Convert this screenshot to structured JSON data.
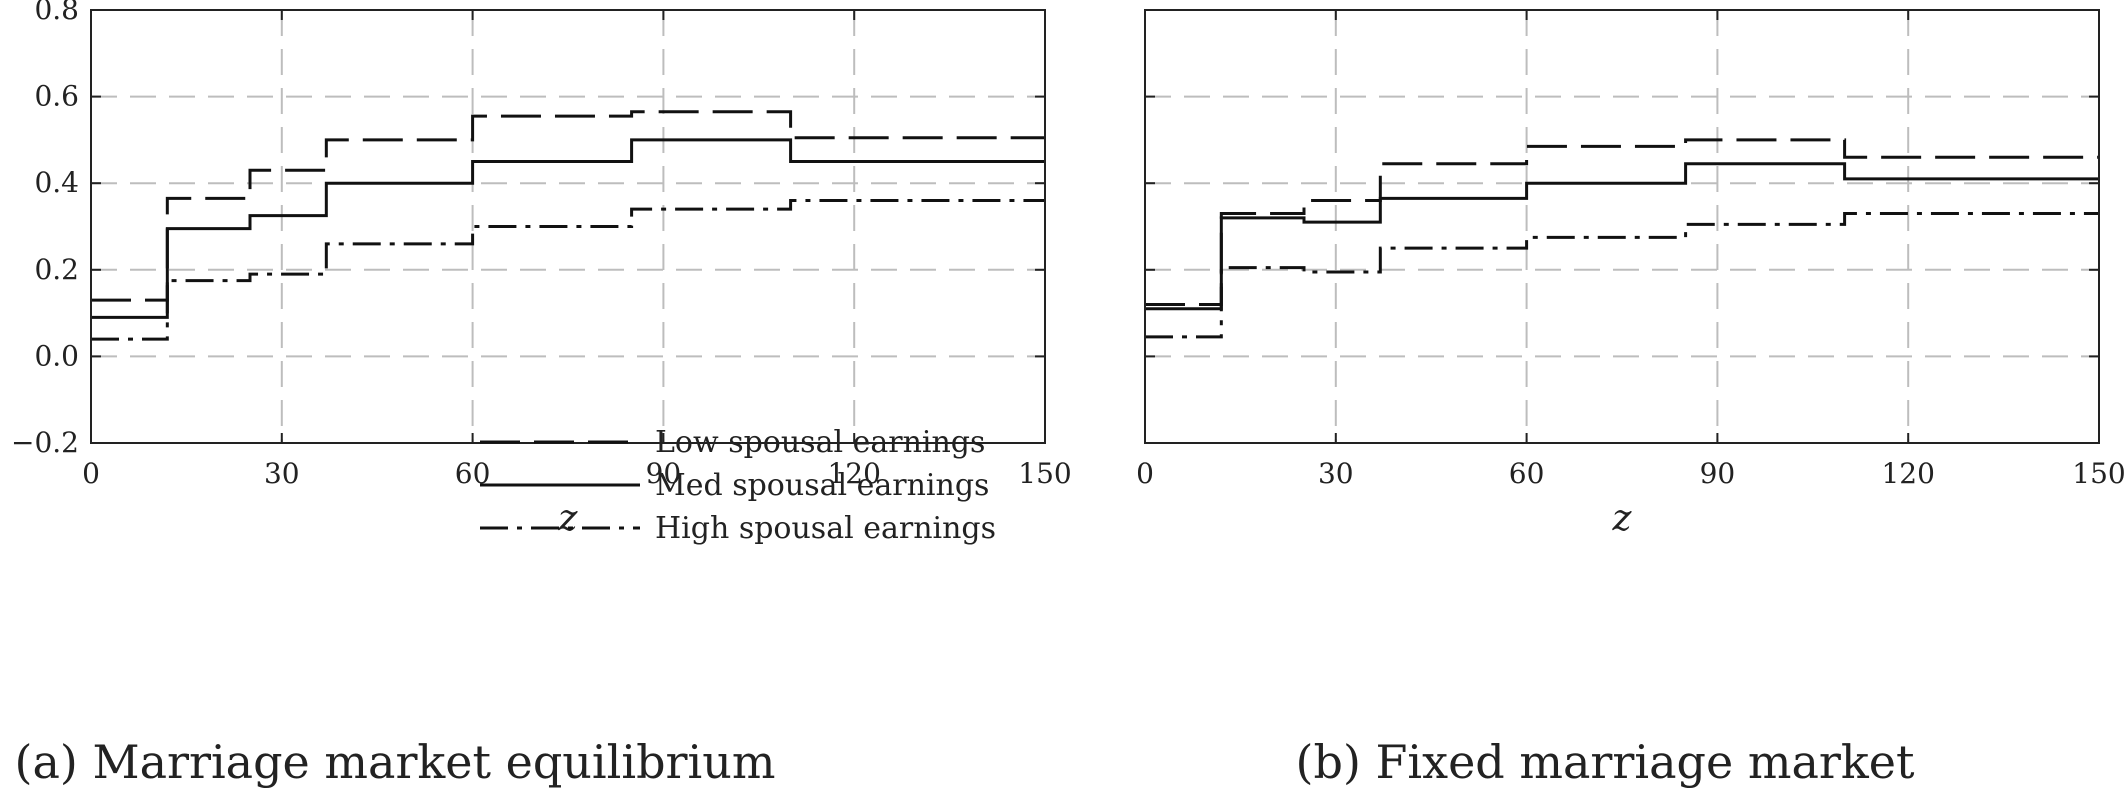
{
  "chart_data": [
    {
      "type": "line",
      "step": "post",
      "caption": "(a) Marriage market equilibrium",
      "xlabel": "z",
      "ylabel": "",
      "xlim": [
        0,
        150
      ],
      "ylim": [
        -0.2,
        0.8
      ],
      "xticks": [
        0,
        30,
        60,
        90,
        120,
        150
      ],
      "yticks": [
        -0.2,
        0.0,
        0.2,
        0.4,
        0.6,
        0.8
      ],
      "ytick_labels": [
        "−0.2",
        "0.0",
        "0.2",
        "0.4",
        "0.6",
        "0.8"
      ],
      "grid": true,
      "legend_position": "bottom-right",
      "series": [
        {
          "name": "Low spousal earnings",
          "dash": "dashed",
          "x": [
            0,
            12,
            25,
            37,
            60,
            85,
            110,
            150
          ],
          "y": [
            0.13,
            0.365,
            0.43,
            0.5,
            0.555,
            0.565,
            0.505,
            0.505
          ]
        },
        {
          "name": "Med spousal earnings",
          "dash": "solid",
          "x": [
            0,
            12,
            25,
            37,
            60,
            85,
            110,
            150
          ],
          "y": [
            0.09,
            0.295,
            0.325,
            0.4,
            0.45,
            0.5,
            0.45,
            0.45
          ]
        },
        {
          "name": "High spousal earnings",
          "dash": "dashdot",
          "x": [
            0,
            12,
            25,
            37,
            60,
            85,
            110,
            150
          ],
          "y": [
            0.04,
            0.175,
            0.19,
            0.26,
            0.3,
            0.34,
            0.36,
            0.36
          ]
        }
      ]
    },
    {
      "type": "line",
      "step": "post",
      "caption": "(b) Fixed marriage market",
      "xlabel": "z",
      "ylabel": "",
      "xlim": [
        0,
        150
      ],
      "ylim": [
        -0.2,
        0.8
      ],
      "xticks": [
        0,
        30,
        60,
        90,
        120,
        150
      ],
      "yticks": [
        -0.2,
        0.0,
        0.2,
        0.4,
        0.6,
        0.8
      ],
      "ytick_labels": [],
      "grid": true,
      "series": [
        {
          "name": "Low spousal earnings",
          "dash": "dashed",
          "x": [
            0,
            12,
            25,
            37,
            60,
            85,
            110,
            150
          ],
          "y": [
            0.12,
            0.33,
            0.36,
            0.445,
            0.485,
            0.5,
            0.46,
            0.46
          ]
        },
        {
          "name": "Med spousal earnings",
          "dash": "solid",
          "x": [
            0,
            12,
            25,
            37,
            60,
            85,
            110,
            150
          ],
          "y": [
            0.11,
            0.32,
            0.31,
            0.365,
            0.4,
            0.445,
            0.41,
            0.41
          ]
        },
        {
          "name": "High spousal earnings",
          "dash": "dashdot",
          "x": [
            0,
            12,
            25,
            37,
            60,
            85,
            110,
            150
          ],
          "y": [
            0.045,
            0.205,
            0.195,
            0.25,
            0.275,
            0.305,
            0.33,
            0.33
          ]
        }
      ]
    }
  ]
}
